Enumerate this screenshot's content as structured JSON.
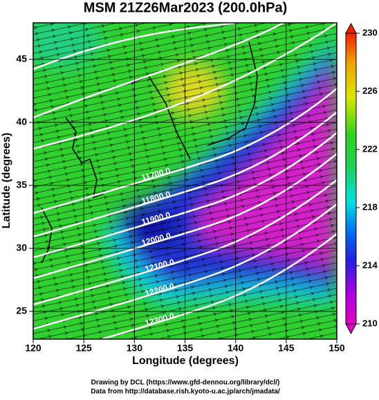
{
  "chart_data": {
    "type": "map",
    "title": "MSM 21Z26Mar2023 (200.0hPa)",
    "x_label": "Longitude (degrees)",
    "y_label": "Latitude  (degrees)",
    "xlim": [
      120,
      150
    ],
    "xticks": [
      120,
      125,
      130,
      135,
      140,
      145,
      150
    ],
    "ylim": [
      22.8,
      47.9
    ],
    "yticks": [
      25,
      30,
      35,
      40,
      45
    ],
    "grid": true,
    "colorbar": {
      "lim": [
        210,
        230
      ],
      "ticks": [
        210,
        214,
        218,
        222,
        226,
        230
      ]
    },
    "contours": [
      {
        "value": 11700,
        "label": "11700.0"
      },
      {
        "value": 11800,
        "label": "11800.0"
      },
      {
        "value": 11900,
        "label": "11900.0"
      },
      {
        "value": 12000,
        "label": "12000.0"
      },
      {
        "value": 12100,
        "label": "12100.0"
      },
      {
        "value": 12200,
        "label": "12200.0"
      },
      {
        "value": 12300,
        "label": "12300.0"
      }
    ],
    "credits": [
      "Drawing by DCL (https://www.gfd-dennou.org/library/dcl/)",
      "Data from http://database.rish.kyoto-u.ac.jp/arch/jmadata/"
    ]
  }
}
